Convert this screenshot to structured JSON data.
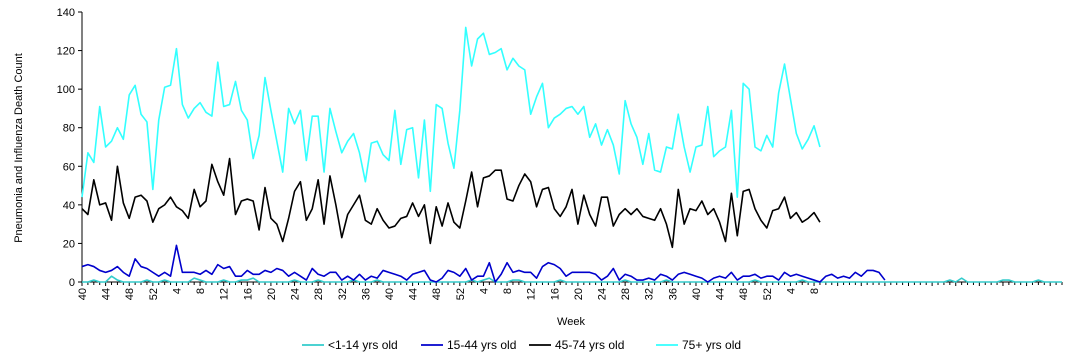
{
  "chart_data": {
    "type": "line",
    "xlabel": "Week",
    "ylabel": "Pneumonia and Influenza Death Count",
    "ylim": [
      0,
      140
    ],
    "yticks": [
      0,
      20,
      40,
      60,
      80,
      100,
      120,
      140
    ],
    "grid": false,
    "legend_position": "bottom",
    "xtick_labels": [
      "40",
      "44",
      "48",
      "52",
      "4",
      "8",
      "12",
      "16",
      "20",
      "24",
      "28",
      "32",
      "36",
      "40",
      "44",
      "48",
      "52",
      "4",
      "8",
      "12",
      "16",
      "20",
      "24",
      "28",
      "32",
      "36",
      "40",
      "44",
      "48",
      "52",
      "4",
      "8"
    ],
    "xtick_every": 4,
    "series": [
      {
        "name": "<1-14 yrs old",
        "color": "#33cccc",
        "values": [
          0,
          0,
          1,
          0,
          0,
          3,
          1,
          0,
          0,
          0,
          0,
          1,
          0,
          0,
          1,
          0,
          0,
          0,
          0,
          2,
          1,
          0,
          0,
          0,
          1,
          0,
          0,
          1,
          1,
          2,
          0,
          0,
          0,
          0,
          0,
          0,
          1,
          0,
          0,
          0,
          1,
          0,
          0,
          0,
          0,
          0,
          1,
          0,
          0,
          0,
          1,
          0,
          0,
          0,
          0,
          0,
          0,
          0,
          0,
          0,
          0,
          0,
          0,
          0,
          0,
          0,
          1,
          0,
          1,
          2,
          0,
          0,
          0,
          1,
          1,
          0,
          0,
          0,
          0,
          0,
          0,
          1,
          0,
          0,
          0,
          0,
          0,
          0,
          0,
          0,
          0,
          0,
          1,
          0,
          0,
          0,
          0,
          0,
          0,
          1,
          0,
          0,
          0,
          0,
          0,
          0,
          0,
          0,
          0,
          0,
          0,
          0,
          0,
          0,
          1,
          0,
          0,
          0,
          0,
          0,
          0,
          0,
          1,
          0,
          0,
          0,
          0,
          0,
          0,
          0,
          0,
          0,
          0,
          0,
          0,
          0,
          0,
          0,
          0,
          0,
          0,
          0,
          0,
          0,
          0,
          0,
          0,
          1,
          0,
          2,
          0,
          0,
          0,
          0,
          0,
          0,
          1,
          1,
          0,
          0,
          0,
          0,
          1,
          0,
          0,
          0,
          0
        ]
      },
      {
        "name": "15-44 yrs old",
        "color": "#0000cc",
        "values": [
          8,
          9,
          8,
          6,
          5,
          6,
          8,
          5,
          3,
          12,
          8,
          7,
          5,
          3,
          5,
          3,
          19,
          5,
          5,
          5,
          4,
          6,
          4,
          9,
          7,
          8,
          3,
          3,
          6,
          4,
          4,
          6,
          5,
          7,
          6,
          3,
          5,
          3,
          1,
          7,
          4,
          3,
          5,
          5,
          1,
          3,
          1,
          4,
          1,
          3,
          2,
          6,
          5,
          4,
          3,
          1,
          4,
          5,
          6,
          1,
          0,
          2,
          6,
          5,
          3,
          7,
          1,
          3,
          3,
          10,
          0,
          4,
          10,
          5,
          6,
          5,
          5,
          2,
          8,
          10,
          9,
          7,
          3,
          5,
          5,
          5,
          5,
          4,
          1,
          3,
          7,
          1,
          4,
          3,
          1,
          1,
          2,
          1,
          4,
          3,
          1,
          4,
          5,
          4,
          3,
          2,
          0,
          2,
          3,
          2,
          5,
          1,
          3,
          3,
          4,
          2,
          3,
          3,
          1,
          5,
          3,
          4,
          3,
          2,
          1,
          0,
          3,
          4,
          2,
          3,
          2,
          5,
          3,
          6,
          6,
          5,
          1
        ]
      },
      {
        "name": "45-74 yrs old",
        "color": "#000000",
        "values": [
          38,
          35,
          53,
          40,
          41,
          32,
          60,
          41,
          33,
          44,
          45,
          42,
          31,
          38,
          40,
          44,
          39,
          37,
          33,
          48,
          39,
          42,
          61,
          52,
          45,
          64,
          35,
          42,
          43,
          42,
          27,
          49,
          33,
          30,
          21,
          33,
          47,
          52,
          32,
          38,
          53,
          30,
          55,
          40,
          23,
          35,
          40,
          45,
          32,
          30,
          38,
          32,
          28,
          29,
          33,
          34,
          41,
          34,
          40,
          20,
          39,
          29,
          41,
          31,
          28,
          42,
          57,
          39,
          54,
          55,
          58,
          58,
          43,
          42,
          50,
          56,
          52,
          39,
          48,
          49,
          38,
          34,
          39,
          48,
          30,
          45,
          35,
          29,
          44,
          44,
          29,
          35,
          38,
          35,
          38,
          34,
          33,
          32,
          38,
          30,
          18,
          48,
          30,
          38,
          37,
          42,
          35,
          38,
          31,
          21,
          46,
          24,
          47,
          48,
          38,
          32,
          28,
          37,
          38,
          44,
          33,
          36,
          31,
          33,
          36,
          31
        ]
      },
      {
        "name": "75+ yrs old",
        "color": "#33ffff",
        "values": [
          44,
          67,
          62,
          91,
          70,
          73,
          80,
          74,
          97,
          102,
          87,
          83,
          48,
          84,
          101,
          102,
          121,
          92,
          85,
          90,
          93,
          88,
          86,
          114,
          91,
          92,
          104,
          89,
          84,
          64,
          76,
          106,
          89,
          73,
          57,
          90,
          82,
          89,
          63,
          86,
          86,
          57,
          90,
          78,
          67,
          73,
          77,
          67,
          52,
          72,
          73,
          66,
          63,
          89,
          61,
          79,
          80,
          54,
          84,
          47,
          92,
          90,
          72,
          59,
          89,
          132,
          112,
          126,
          129,
          118,
          119,
          121,
          110,
          116,
          112,
          110,
          87,
          96,
          103,
          80,
          85,
          87,
          90,
          91,
          87,
          91,
          75,
          82,
          71,
          79,
          71,
          56,
          94,
          82,
          75,
          61,
          77,
          58,
          57,
          70,
          69,
          87,
          70,
          57,
          70,
          71,
          91,
          65,
          68,
          70,
          89,
          44,
          103,
          100,
          70,
          68,
          76,
          70,
          98,
          113,
          95,
          77,
          69,
          74,
          81,
          70
        ]
      }
    ]
  }
}
